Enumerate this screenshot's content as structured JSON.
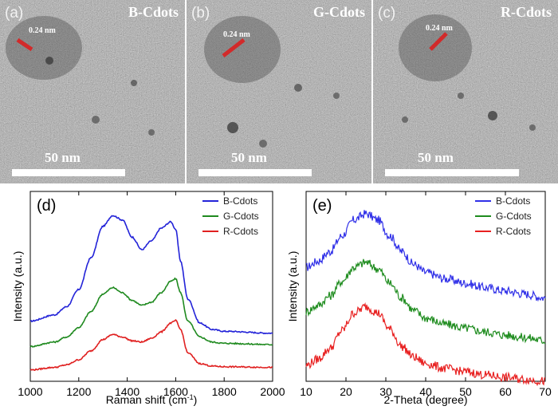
{
  "panels_tem": [
    {
      "label": "(a)",
      "name": "B-Cdots",
      "lattice": "0.24 nm",
      "scale": "50 nm"
    },
    {
      "label": "(b)",
      "name": "G-Cdots",
      "lattice": "0.24 nm",
      "scale": "50 nm"
    },
    {
      "label": "(c)",
      "name": "R-Cdots",
      "lattice": "0.24 nm",
      "scale": "50 nm"
    }
  ],
  "chart_data": [
    {
      "type": "line",
      "panel": "(d)",
      "xlabel": "Raman shift (cm",
      "xlabel_sup": "-1",
      "xlabel_end": ")",
      "ylabel": "Intensity (a.u.)",
      "xlim": [
        1000,
        2000
      ],
      "ylim": [
        0,
        3
      ],
      "xticks": [
        "1000",
        "1200",
        "1400",
        "1600",
        "1800",
        "2000"
      ],
      "legend_position": "top-right",
      "series": [
        {
          "name": "B-Cdots",
          "color": "#2323d8",
          "x": [
            1000,
            1100,
            1150,
            1200,
            1250,
            1300,
            1340,
            1380,
            1420,
            1460,
            1500,
            1540,
            1580,
            1600,
            1620,
            1650,
            1700,
            1750,
            1800,
            2000
          ],
          "values": [
            0.95,
            1.05,
            1.18,
            1.45,
            1.95,
            2.45,
            2.62,
            2.55,
            2.28,
            2.08,
            2.22,
            2.42,
            2.52,
            2.4,
            1.9,
            1.3,
            0.92,
            0.82,
            0.79,
            0.76
          ]
        },
        {
          "name": "G-Cdots",
          "color": "#1f8a1f",
          "x": [
            1000,
            1100,
            1150,
            1200,
            1250,
            1300,
            1340,
            1380,
            1420,
            1460,
            1500,
            1540,
            1580,
            1600,
            1620,
            1650,
            1700,
            1750,
            1800,
            2000
          ],
          "values": [
            0.55,
            0.62,
            0.7,
            0.85,
            1.1,
            1.38,
            1.48,
            1.4,
            1.28,
            1.2,
            1.25,
            1.4,
            1.58,
            1.62,
            1.4,
            0.95,
            0.7,
            0.62,
            0.6,
            0.58
          ]
        },
        {
          "name": "R-Cdots",
          "color": "#e02020",
          "x": [
            1000,
            1100,
            1150,
            1200,
            1250,
            1300,
            1340,
            1380,
            1420,
            1460,
            1500,
            1540,
            1580,
            1600,
            1620,
            1650,
            1700,
            1750,
            1800,
            2000
          ],
          "values": [
            0.18,
            0.22,
            0.26,
            0.34,
            0.48,
            0.66,
            0.74,
            0.7,
            0.64,
            0.62,
            0.68,
            0.78,
            0.92,
            0.96,
            0.82,
            0.45,
            0.28,
            0.24,
            0.23,
            0.22
          ]
        }
      ]
    },
    {
      "type": "line",
      "panel": "(e)",
      "xlabel": "2-Theta (degree)",
      "ylabel": "Intensity (a.u.)",
      "xlim": [
        10,
        70
      ],
      "ylim": [
        0,
        3
      ],
      "xticks": [
        "10",
        "20",
        "30",
        "40",
        "50",
        "60",
        "70"
      ],
      "legend_position": "top-right",
      "series": [
        {
          "name": "B-Cdots",
          "color": "#3030e8",
          "x": [
            10,
            13,
            16,
            19,
            22,
            25,
            28,
            31,
            34,
            37,
            40,
            45,
            50,
            55,
            60,
            65,
            70
          ],
          "values": [
            1.8,
            1.9,
            2.05,
            2.3,
            2.55,
            2.65,
            2.55,
            2.3,
            2.05,
            1.85,
            1.72,
            1.62,
            1.55,
            1.48,
            1.43,
            1.38,
            1.32
          ]
        },
        {
          "name": "G-Cdots",
          "color": "#1e8c1e",
          "x": [
            10,
            13,
            16,
            19,
            22,
            25,
            28,
            31,
            34,
            37,
            40,
            45,
            50,
            55,
            60,
            65,
            70
          ],
          "values": [
            1.1,
            1.2,
            1.35,
            1.58,
            1.8,
            1.88,
            1.78,
            1.55,
            1.32,
            1.12,
            1.0,
            0.9,
            0.84,
            0.78,
            0.73,
            0.69,
            0.64
          ]
        },
        {
          "name": "R-Cdots",
          "color": "#e82020",
          "x": [
            10,
            13,
            16,
            19,
            22,
            25,
            28,
            31,
            34,
            37,
            40,
            45,
            50,
            55,
            60,
            65,
            70
          ],
          "values": [
            0.25,
            0.35,
            0.52,
            0.8,
            1.08,
            1.18,
            1.08,
            0.82,
            0.55,
            0.38,
            0.28,
            0.2,
            0.15,
            0.1,
            0.06,
            0.03,
            0.0
          ]
        }
      ]
    }
  ]
}
